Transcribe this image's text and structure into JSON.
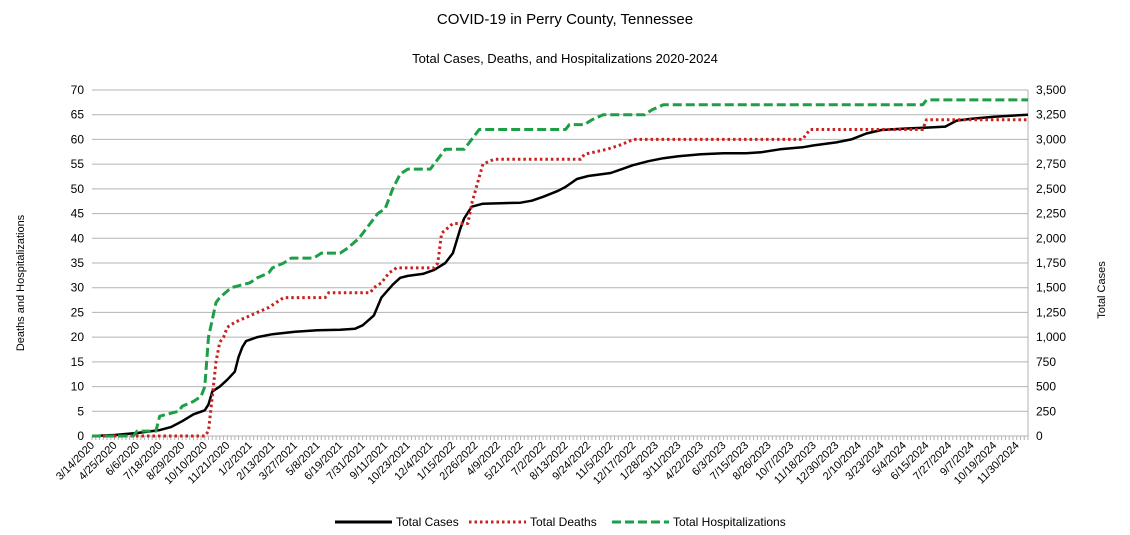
{
  "chart_data": {
    "type": "line",
    "title": "COVID-19 in Perry County, Tennessee",
    "subtitle": "Total Cases, Deaths, and Hospitalizations 2020-2024",
    "ylabel_left": "Deaths and Hospitalizations",
    "ylabel_right": "Total Cases",
    "x_range": [
      "3/14/2020",
      "12/21/2024"
    ],
    "ylim_left": [
      0,
      70
    ],
    "ylim_right": [
      0,
      3500
    ],
    "grid": true,
    "legend_position": "bottom",
    "yticks_left": [
      "0",
      "5",
      "10",
      "15",
      "20",
      "25",
      "30",
      "35",
      "40",
      "45",
      "50",
      "55",
      "60",
      "65",
      "70"
    ],
    "yticks_right": [
      "0",
      "250",
      "500",
      "750",
      "1,000",
      "1,250",
      "1,500",
      "1,750",
      "2,000",
      "2,250",
      "2,500",
      "2,750",
      "3,000",
      "3,250",
      "3,500"
    ],
    "x_tick_labels": [
      "3/14/2020",
      "4/25/2020",
      "6/6/2020",
      "7/18/2020",
      "8/29/2020",
      "10/10/2020",
      "11/21/2020",
      "1/2/2021",
      "2/13/2021",
      "3/27/2021",
      "5/8/2021",
      "6/19/2021",
      "7/31/2021",
      "9/11/2021",
      "10/23/2021",
      "12/4/2021",
      "1/15/2022",
      "2/26/2022",
      "4/9/2022",
      "5/21/2022",
      "7/2/2022",
      "8/13/2022",
      "9/24/2022",
      "11/5/2022",
      "12/17/2022",
      "1/28/2023",
      "3/11/2023",
      "4/22/2023",
      "6/3/2023",
      "7/15/2023",
      "8/26/2023",
      "10/7/2023",
      "11/18/2023",
      "12/30/2023",
      "2/10/2024",
      "3/23/2024",
      "5/4/2024",
      "6/15/2024",
      "7/27/2024",
      "9/7/2024",
      "10/19/2024",
      "11/30/2024"
    ],
    "series": [
      {
        "name": "Total Cases",
        "axis": "right",
        "color": "#000000",
        "style": "solid",
        "points": [
          [
            "3/14/2020",
            0
          ],
          [
            "4/25/2020",
            10
          ],
          [
            "6/6/2020",
            30
          ],
          [
            "7/18/2020",
            60
          ],
          [
            "8/8/2020",
            90
          ],
          [
            "8/29/2020",
            150
          ],
          [
            "9/19/2020",
            220
          ],
          [
            "10/10/2020",
            260
          ],
          [
            "10/17/2020",
            320
          ],
          [
            "10/24/2020",
            450
          ],
          [
            "11/7/2020",
            500
          ],
          [
            "11/21/2020",
            570
          ],
          [
            "12/5/2020",
            650
          ],
          [
            "12/12/2020",
            800
          ],
          [
            "12/19/2020",
            900
          ],
          [
            "12/26/2020",
            960
          ],
          [
            "1/16/2021",
            1000
          ],
          [
            "2/13/2021",
            1030
          ],
          [
            "3/27/2021",
            1055
          ],
          [
            "5/8/2021",
            1070
          ],
          [
            "6/19/2021",
            1075
          ],
          [
            "7/17/2021",
            1085
          ],
          [
            "7/31/2021",
            1120
          ],
          [
            "8/21/2021",
            1220
          ],
          [
            "9/4/2021",
            1400
          ],
          [
            "9/25/2021",
            1530
          ],
          [
            "10/9/2021",
            1600
          ],
          [
            "10/23/2021",
            1620
          ],
          [
            "11/20/2021",
            1640
          ],
          [
            "12/11/2021",
            1680
          ],
          [
            "1/1/2022",
            1750
          ],
          [
            "1/15/2022",
            1850
          ],
          [
            "1/29/2022",
            2100
          ],
          [
            "2/5/2022",
            2200
          ],
          [
            "2/19/2022",
            2320
          ],
          [
            "3/12/2022",
            2350
          ],
          [
            "5/21/2022",
            2360
          ],
          [
            "6/11/2022",
            2380
          ],
          [
            "7/2/2022",
            2420
          ],
          [
            "7/30/2022",
            2480
          ],
          [
            "8/13/2022",
            2520
          ],
          [
            "9/3/2022",
            2600
          ],
          [
            "9/24/2022",
            2630
          ],
          [
            "11/5/2022",
            2660
          ],
          [
            "11/26/2022",
            2700
          ],
          [
            "12/17/2022",
            2740
          ],
          [
            "1/14/2023",
            2780
          ],
          [
            "2/11/2023",
            2810
          ],
          [
            "3/11/2023",
            2830
          ],
          [
            "4/22/2023",
            2850
          ],
          [
            "6/3/2023",
            2860
          ],
          [
            "7/15/2023",
            2860
          ],
          [
            "8/12/2023",
            2870
          ],
          [
            "9/16/2023",
            2900
          ],
          [
            "10/28/2023",
            2920
          ],
          [
            "11/18/2023",
            2940
          ],
          [
            "12/30/2023",
            2970
          ],
          [
            "1/27/2024",
            3000
          ],
          [
            "2/24/2024",
            3060
          ],
          [
            "3/23/2024",
            3095
          ],
          [
            "5/4/2024",
            3110
          ],
          [
            "6/15/2024",
            3120
          ],
          [
            "7/20/2024",
            3130
          ],
          [
            "8/10/2024",
            3190
          ],
          [
            "9/7/2024",
            3210
          ],
          [
            "10/19/2024",
            3230
          ],
          [
            "12/21/2024",
            3250
          ]
        ]
      },
      {
        "name": "Total Deaths",
        "axis": "left",
        "color": "#c9211e",
        "style": "dotted",
        "points": [
          [
            "3/14/2020",
            0
          ],
          [
            "10/10/2020",
            0
          ],
          [
            "10/17/2020",
            1
          ],
          [
            "10/24/2020",
            8
          ],
          [
            "10/31/2020",
            15
          ],
          [
            "11/7/2020",
            19
          ],
          [
            "11/14/2020",
            20
          ],
          [
            "11/21/2020",
            22
          ],
          [
            "12/5/2020",
            23
          ],
          [
            "12/26/2020",
            24
          ],
          [
            "1/16/2021",
            25
          ],
          [
            "2/6/2021",
            26
          ],
          [
            "2/20/2021",
            27
          ],
          [
            "3/6/2021",
            28
          ],
          [
            "5/22/2021",
            28
          ],
          [
            "5/29/2021",
            29
          ],
          [
            "8/14/2021",
            29
          ],
          [
            "8/21/2021",
            30
          ],
          [
            "9/4/2021",
            31
          ],
          [
            "9/18/2021",
            33
          ],
          [
            "10/2/2021",
            34
          ],
          [
            "12/11/2021",
            34
          ],
          [
            "12/18/2021",
            35
          ],
          [
            "12/25/2021",
            41
          ],
          [
            "1/15/2022",
            43
          ],
          [
            "2/12/2022",
            43
          ],
          [
            "2/19/2022",
            47
          ],
          [
            "3/12/2022",
            55
          ],
          [
            "4/2/2022",
            56
          ],
          [
            "9/10/2022",
            56
          ],
          [
            "9/17/2022",
            57
          ],
          [
            "10/29/2022",
            58
          ],
          [
            "11/26/2022",
            59
          ],
          [
            "12/17/2022",
            60
          ],
          [
            "10/28/2023",
            60
          ],
          [
            "11/11/2023",
            62
          ],
          [
            "6/8/2024",
            62
          ],
          [
            "6/15/2024",
            64
          ],
          [
            "12/21/2024",
            64
          ]
        ]
      },
      {
        "name": "Total Hospitalizations",
        "axis": "left",
        "color": "#1e9e47",
        "style": "dashed",
        "points": [
          [
            "3/14/2020",
            0
          ],
          [
            "5/30/2020",
            0
          ],
          [
            "6/6/2020",
            1
          ],
          [
            "7/11/2020",
            1
          ],
          [
            "7/18/2020",
            4
          ],
          [
            "8/22/2020",
            5
          ],
          [
            "8/29/2020",
            6
          ],
          [
            "9/19/2020",
            7
          ],
          [
            "10/3/2020",
            8
          ],
          [
            "10/10/2020",
            10
          ],
          [
            "10/17/2020",
            20
          ],
          [
            "10/31/2020",
            27
          ],
          [
            "11/7/2020",
            28
          ],
          [
            "11/28/2020",
            30
          ],
          [
            "1/2/2021",
            31
          ],
          [
            "1/16/2021",
            32
          ],
          [
            "2/6/2021",
            33
          ],
          [
            "2/13/2021",
            34
          ],
          [
            "3/6/2021",
            35
          ],
          [
            "3/20/2021",
            36
          ],
          [
            "5/1/2021",
            36
          ],
          [
            "5/15/2021",
            37
          ],
          [
            "6/19/2021",
            37
          ],
          [
            "7/3/2021",
            38
          ],
          [
            "7/24/2021",
            40
          ],
          [
            "8/14/2021",
            43
          ],
          [
            "8/28/2021",
            45
          ],
          [
            "9/11/2021",
            46
          ],
          [
            "9/25/2021",
            50
          ],
          [
            "10/9/2021",
            53
          ],
          [
            "10/23/2021",
            54
          ],
          [
            "12/4/2021",
            54
          ],
          [
            "12/18/2021",
            56
          ],
          [
            "1/1/2022",
            58
          ],
          [
            "2/5/2022",
            58
          ],
          [
            "2/19/2022",
            60
          ],
          [
            "3/5/2022",
            62
          ],
          [
            "8/13/2022",
            62
          ],
          [
            "8/20/2022",
            63
          ],
          [
            "9/17/2022",
            63
          ],
          [
            "10/1/2022",
            64
          ],
          [
            "10/22/2022",
            65
          ],
          [
            "1/7/2023",
            65
          ],
          [
            "1/21/2023",
            66
          ],
          [
            "2/11/2023",
            67
          ],
          [
            "6/8/2024",
            67
          ],
          [
            "6/15/2024",
            68
          ],
          [
            "12/21/2024",
            68
          ]
        ]
      }
    ]
  }
}
